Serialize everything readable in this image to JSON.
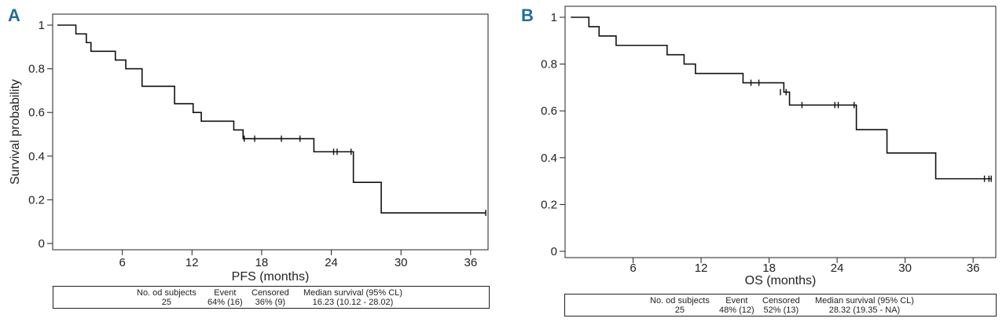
{
  "chart_data": [
    {
      "panel_label": "A",
      "type": "line",
      "subtype": "kaplan-meier",
      "xlabel": "PFS (months)",
      "ylabel": "Survival probability",
      "xlim": [
        0,
        37.5
      ],
      "ylim": [
        0,
        1
      ],
      "xticks": [
        6,
        12,
        18,
        24,
        30,
        36
      ],
      "yticks": [
        0,
        0.2,
        0.4,
        0.6,
        0.8,
        1
      ],
      "ytick_labels": [
        "0",
        "0.2",
        "0.4",
        "0.6",
        "0.8",
        "1"
      ],
      "start_x": 0.4,
      "steps": [
        {
          "x": 2.0,
          "y": 0.96
        },
        {
          "x": 2.9,
          "y": 0.92
        },
        {
          "x": 3.3,
          "y": 0.88
        },
        {
          "x": 5.4,
          "y": 0.84
        },
        {
          "x": 6.3,
          "y": 0.8
        },
        {
          "x": 7.7,
          "y": 0.72
        },
        {
          "x": 10.5,
          "y": 0.64
        },
        {
          "x": 12.1,
          "y": 0.6
        },
        {
          "x": 12.8,
          "y": 0.56
        },
        {
          "x": 15.6,
          "y": 0.52
        },
        {
          "x": 16.4,
          "y": 0.48
        },
        {
          "x": 22.5,
          "y": 0.42
        },
        {
          "x": 25.9,
          "y": 0.28
        },
        {
          "x": 28.3,
          "y": 0.14
        }
      ],
      "end_x": 37.3,
      "censor_marks": [
        {
          "x": 16.5,
          "y": 0.48
        },
        {
          "x": 17.4,
          "y": 0.48
        },
        {
          "x": 19.7,
          "y": 0.48
        },
        {
          "x": 21.3,
          "y": 0.48
        },
        {
          "x": 24.2,
          "y": 0.42
        },
        {
          "x": 24.5,
          "y": 0.42
        },
        {
          "x": 25.7,
          "y": 0.42
        },
        {
          "x": 37.3,
          "y": 0.14
        }
      ],
      "summary": {
        "headers": [
          "No. od subjects",
          "Event",
          "Censored",
          "Median survival (95% CL)"
        ],
        "values": [
          "25",
          "64% (16)",
          "36% (9)",
          "16.23 (10.12 - 28.02)"
        ]
      },
      "line_color": "#111111",
      "letter_color": "#1f6e9c"
    },
    {
      "panel_label": "B",
      "type": "line",
      "subtype": "kaplan-meier",
      "xlabel": "OS (months)",
      "ylabel": "Survival probability",
      "xlim": [
        0,
        38
      ],
      "ylim": [
        0,
        1
      ],
      "xticks": [
        6,
        12,
        18,
        24,
        30,
        36
      ],
      "yticks": [
        0,
        0.2,
        0.4,
        0.6,
        0.8,
        1
      ],
      "ytick_labels": [
        "0",
        "0.2",
        "0.4",
        "0.6",
        "0.8",
        "1"
      ],
      "start_x": 0.5,
      "steps": [
        {
          "x": 2.1,
          "y": 0.96
        },
        {
          "x": 3.0,
          "y": 0.92
        },
        {
          "x": 4.5,
          "y": 0.88
        },
        {
          "x": 9.0,
          "y": 0.84
        },
        {
          "x": 10.5,
          "y": 0.8
        },
        {
          "x": 11.5,
          "y": 0.76
        },
        {
          "x": 15.7,
          "y": 0.72
        },
        {
          "x": 19.3,
          "y": 0.68
        },
        {
          "x": 19.8,
          "y": 0.625
        },
        {
          "x": 25.7,
          "y": 0.52
        },
        {
          "x": 28.4,
          "y": 0.42
        },
        {
          "x": 32.7,
          "y": 0.31
        }
      ],
      "end_x": 37.6,
      "censor_marks": [
        {
          "x": 16.4,
          "y": 0.72
        },
        {
          "x": 17.1,
          "y": 0.72
        },
        {
          "x": 19.0,
          "y": 0.68
        },
        {
          "x": 19.5,
          "y": 0.68
        },
        {
          "x": 20.9,
          "y": 0.625
        },
        {
          "x": 23.8,
          "y": 0.625
        },
        {
          "x": 24.1,
          "y": 0.625
        },
        {
          "x": 25.5,
          "y": 0.625
        },
        {
          "x": 37.0,
          "y": 0.31
        },
        {
          "x": 37.4,
          "y": 0.31
        },
        {
          "x": 37.6,
          "y": 0.31
        }
      ],
      "summary": {
        "headers": [
          "No. od subjects",
          "Event",
          "Censored",
          "Median survival (95% CL)"
        ],
        "values": [
          "25",
          "48% (12)",
          "52% (13)",
          "28.32 (19.35 - NA)"
        ]
      },
      "line_color": "#111111",
      "letter_color": "#1f6e9c"
    }
  ]
}
